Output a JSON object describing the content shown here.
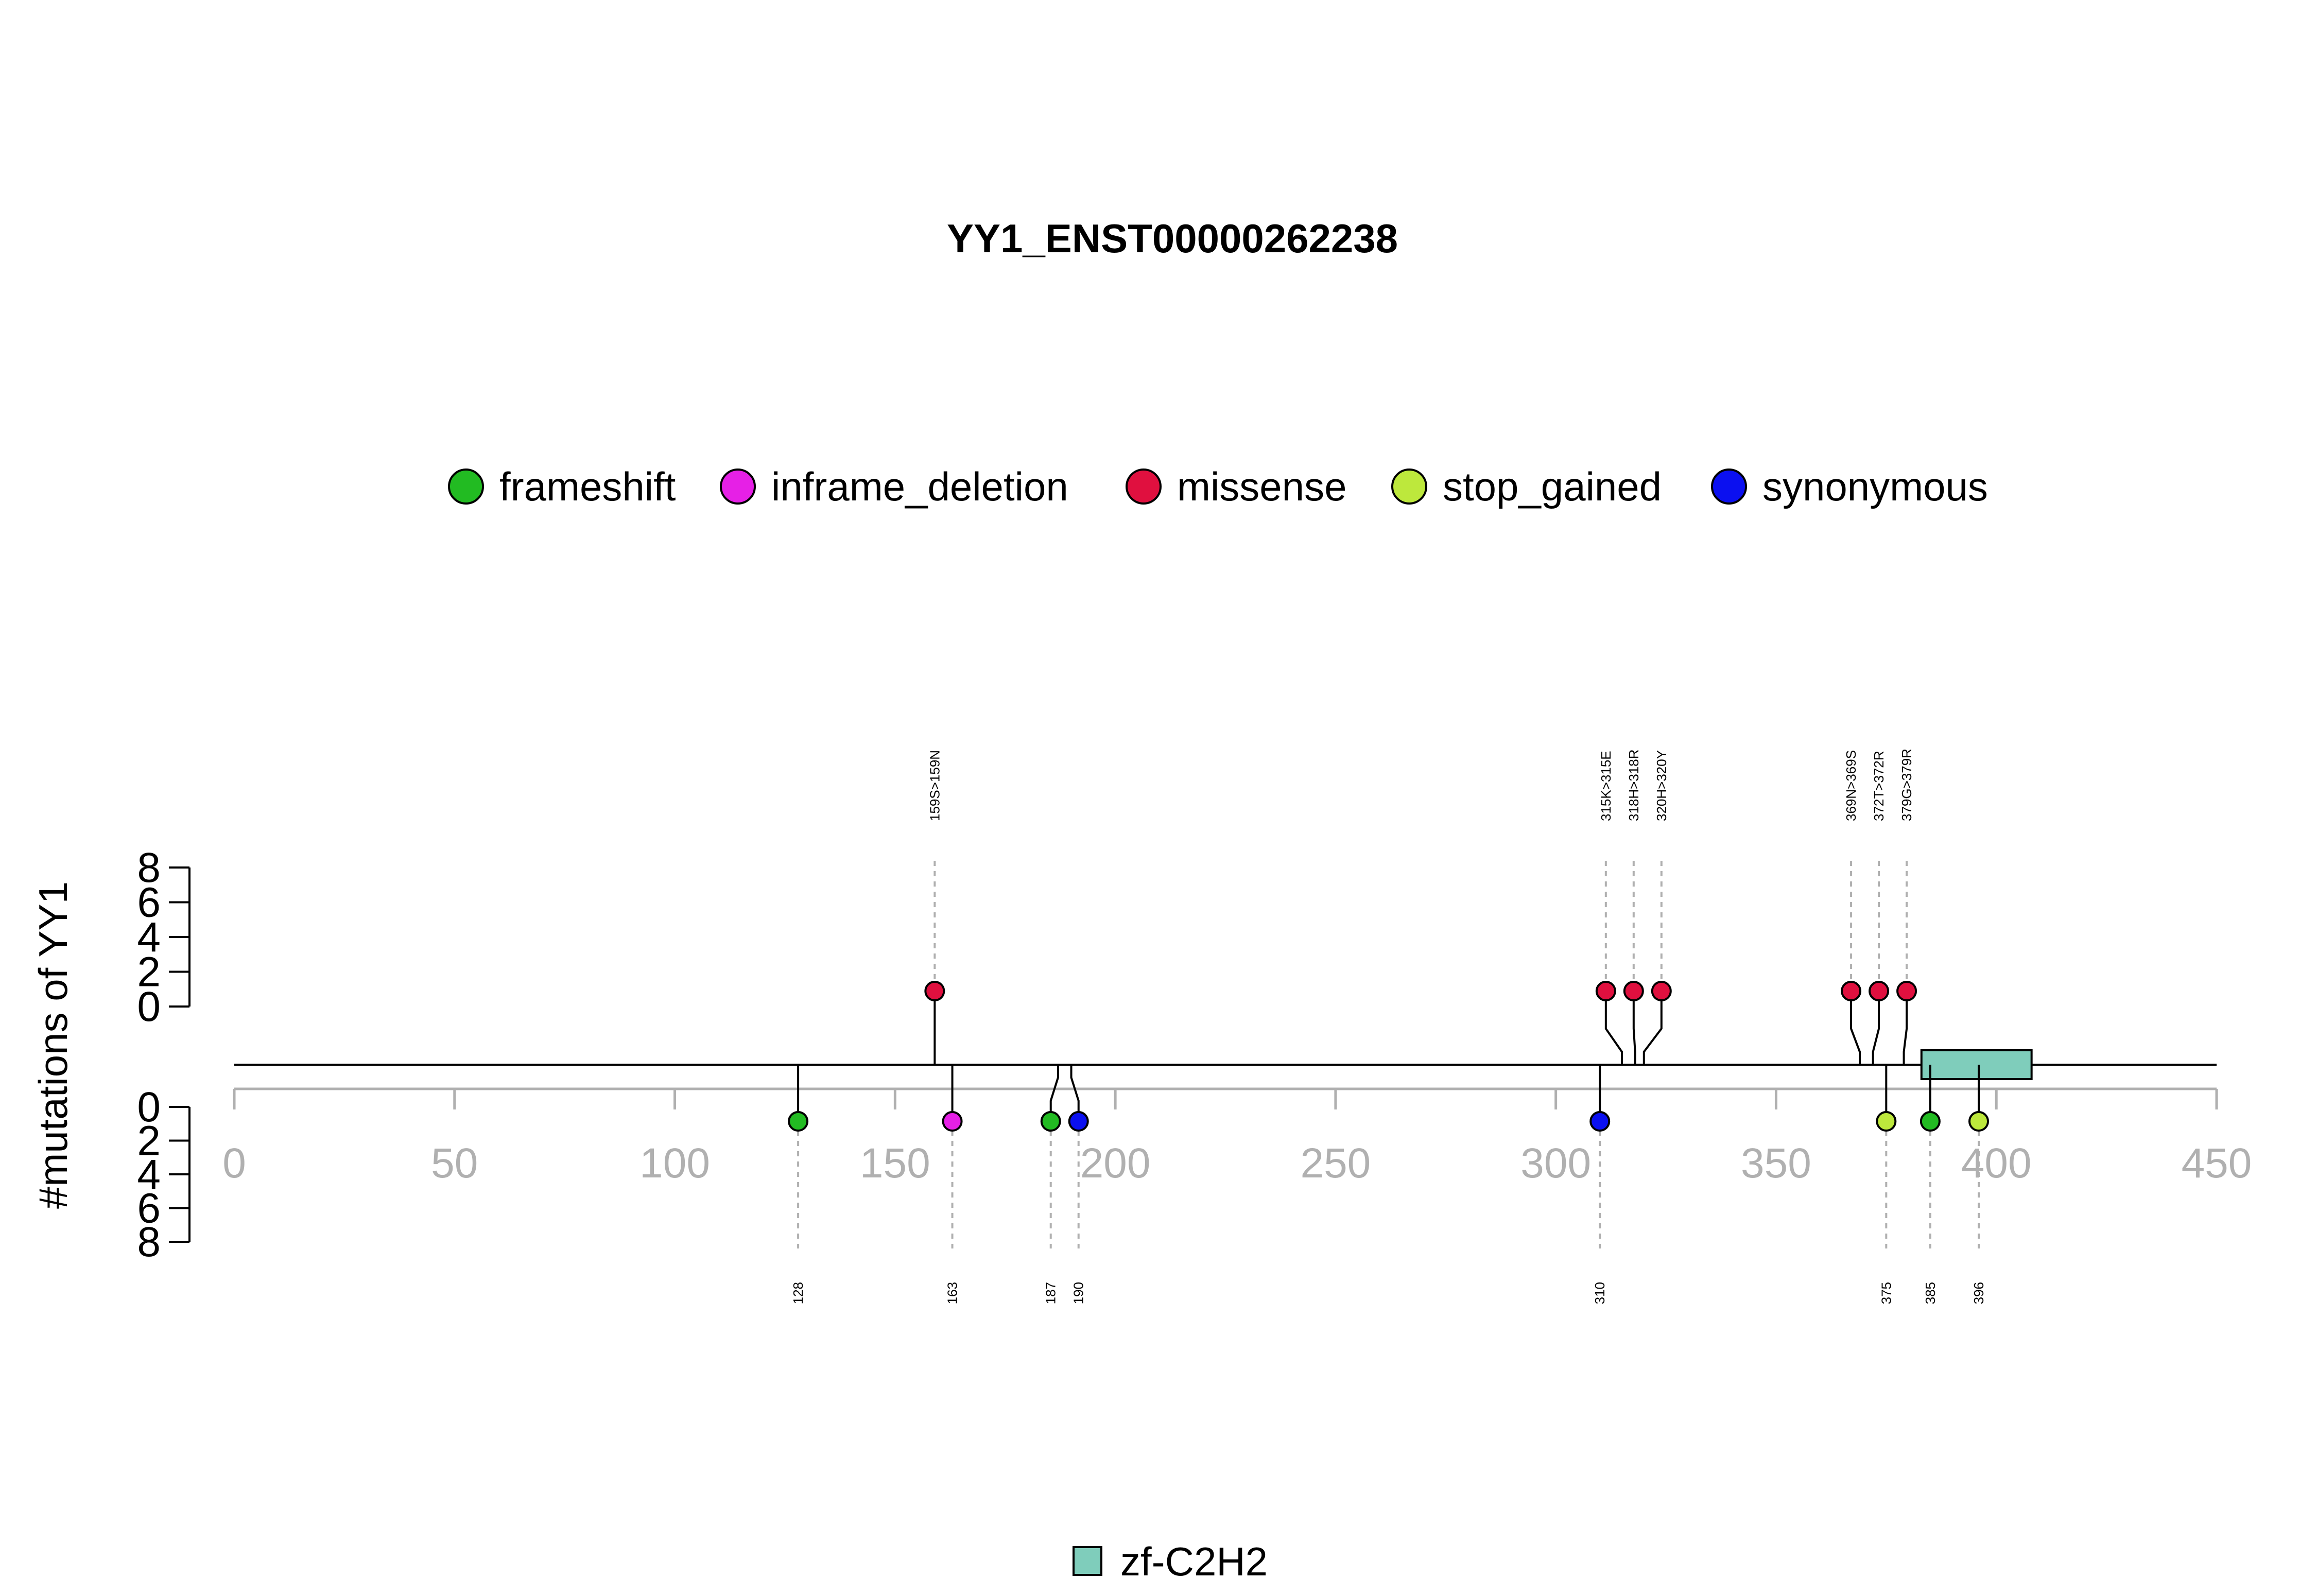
{
  "chart_data": {
    "type": "lollipop",
    "title": "YY1_ENST00000262238",
    "ylabel": "#mutations of YY1",
    "xlim": [
      0,
      450
    ],
    "x_ticks": [
      "0",
      "50",
      "100",
      "150",
      "200",
      "250",
      "300",
      "350",
      "400",
      "450"
    ],
    "y_ticks": [
      "0",
      "2",
      "4",
      "6",
      "8"
    ],
    "ylim": [
      0,
      8
    ],
    "legend": [
      {
        "name": "frameshift",
        "color": "#22bb22"
      },
      {
        "name": "inframe_deletion",
        "color": "#e620e6"
      },
      {
        "name": "missense",
        "color": "#e0103f"
      },
      {
        "name": "stop_gained",
        "color": "#bde83c"
      },
      {
        "name": "synonymous",
        "color": "#0b10f0"
      }
    ],
    "upper_mutations": [
      {
        "position": 159,
        "label": "159S>159N",
        "type": "missense",
        "count": 1
      },
      {
        "position": 315,
        "label": "315K>315E",
        "type": "missense",
        "count": 1
      },
      {
        "position": 318,
        "label": "318H>318R",
        "type": "missense",
        "count": 1
      },
      {
        "position": 320,
        "label": "320H>320Y",
        "type": "missense",
        "count": 1
      },
      {
        "position": 369,
        "label": "369N>369S",
        "type": "missense",
        "count": 1
      },
      {
        "position": 372,
        "label": "372T>372R",
        "type": "missense",
        "count": 1
      },
      {
        "position": 379,
        "label": "379G>379R",
        "type": "missense",
        "count": 1
      }
    ],
    "lower_mutations": [
      {
        "position": 128,
        "label": "128",
        "type": "frameshift",
        "count": 1
      },
      {
        "position": 163,
        "label": "163",
        "type": "inframe_deletion",
        "count": 1
      },
      {
        "position": 187,
        "label": "187",
        "type": "frameshift",
        "count": 1
      },
      {
        "position": 190,
        "label": "190",
        "type": "synonymous",
        "count": 1
      },
      {
        "position": 310,
        "label": "310",
        "type": "synonymous",
        "count": 1
      },
      {
        "position": 375,
        "label": "375",
        "type": "stop_gained",
        "count": 1
      },
      {
        "position": 385,
        "label": "385",
        "type": "frameshift",
        "count": 1
      },
      {
        "position": 396,
        "label": "396",
        "type": "stop_gained",
        "count": 1
      }
    ],
    "domains": [
      {
        "name": "zf-C2H2",
        "start": 383,
        "end": 408,
        "color": "#7fcdbb"
      }
    ]
  }
}
